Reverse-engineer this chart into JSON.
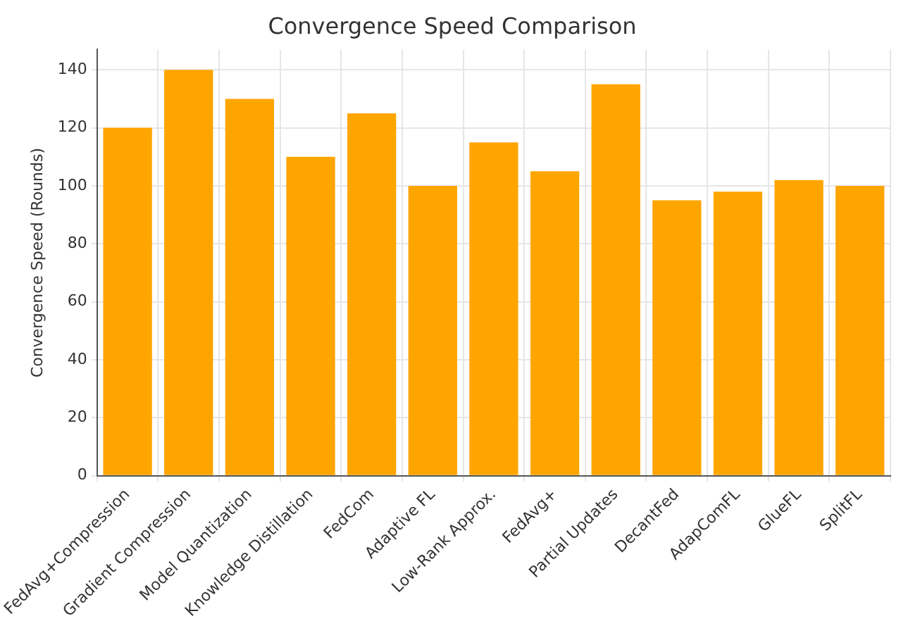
{
  "chart_data": {
    "type": "bar",
    "title": "Convergence Speed Comparison",
    "ylabel": "Convergence Speed (Rounds)",
    "categories": [
      "FedAvg+Compression",
      "Gradient Compression",
      "Model Quantization",
      "Knowledge Distillation",
      "FedCom",
      "Adaptive FL",
      "Low-Rank Approx.",
      "FedAvg+",
      "Partial Updates",
      "DecantFed",
      "AdapComFL",
      "GlueFL",
      "SplitFL"
    ],
    "values": [
      120,
      140,
      130,
      110,
      125,
      100,
      115,
      105,
      135,
      95,
      98,
      102,
      100
    ],
    "color": "#ffa500",
    "ylim": [
      0,
      147
    ],
    "yticks": [
      0,
      20,
      40,
      60,
      80,
      100,
      120,
      140
    ],
    "grid": true
  }
}
